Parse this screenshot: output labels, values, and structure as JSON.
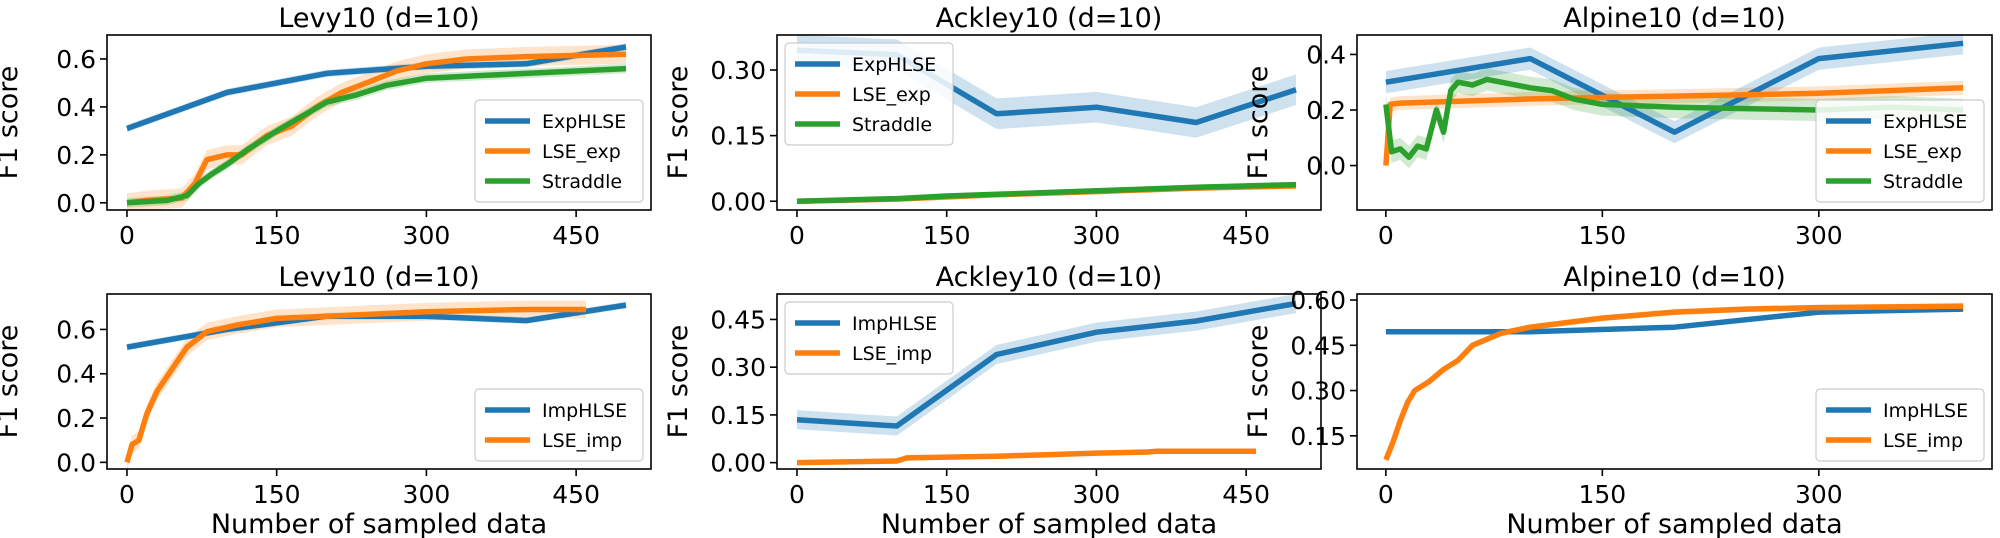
{
  "figure": {
    "background": "#ffffff"
  },
  "colors": {
    "blue": "#1f77b4",
    "orange": "#ff7f0e",
    "green": "#2ca02c"
  },
  "chart_data": [
    {
      "type": "line",
      "title": "Levy10 (d=10)",
      "xlabel": "",
      "ylabel": "F1 score",
      "xlim": [
        -20,
        525
      ],
      "ylim": [
        -0.03,
        0.7
      ],
      "xticks": [
        0,
        150,
        300,
        450
      ],
      "yticks": [
        0.0,
        0.2,
        0.4,
        0.6
      ],
      "ytick_labels": [
        "0.0",
        "0.2",
        "0.4",
        "0.6"
      ],
      "legend": "lower-right",
      "series": [
        {
          "name": "ExpHLSE",
          "color": "#1f77b4",
          "band": 0.015,
          "points": [
            [
              0,
              0.31
            ],
            [
              100,
              0.46
            ],
            [
              200,
              0.54
            ],
            [
              300,
              0.57
            ],
            [
              400,
              0.58
            ],
            [
              500,
              0.65
            ]
          ]
        },
        {
          "name": "LSE_exp",
          "color": "#ff7f0e",
          "band": 0.04,
          "points": [
            [
              0,
              0.0
            ],
            [
              20,
              0.01
            ],
            [
              55,
              0.02
            ],
            [
              68,
              0.08
            ],
            [
              80,
              0.18
            ],
            [
              100,
              0.2
            ],
            [
              115,
              0.2
            ],
            [
              140,
              0.28
            ],
            [
              165,
              0.32
            ],
            [
              190,
              0.4
            ],
            [
              215,
              0.46
            ],
            [
              240,
              0.5
            ],
            [
              270,
              0.55
            ],
            [
              300,
              0.58
            ],
            [
              340,
              0.6
            ],
            [
              400,
              0.61
            ],
            [
              500,
              0.62
            ]
          ]
        },
        {
          "name": "Straddle",
          "color": "#2ca02c",
          "band": 0.02,
          "points": [
            [
              0,
              0.0
            ],
            [
              40,
              0.01
            ],
            [
              60,
              0.03
            ],
            [
              72,
              0.08
            ],
            [
              85,
              0.12
            ],
            [
              100,
              0.16
            ],
            [
              120,
              0.22
            ],
            [
              150,
              0.3
            ],
            [
              175,
              0.36
            ],
            [
              200,
              0.42
            ],
            [
              230,
              0.45
            ],
            [
              260,
              0.49
            ],
            [
              300,
              0.52
            ],
            [
              350,
              0.53
            ],
            [
              400,
              0.54
            ],
            [
              450,
              0.55
            ],
            [
              500,
              0.56
            ]
          ]
        }
      ]
    },
    {
      "type": "line",
      "title": "Ackley10 (d=10)",
      "xlabel": "",
      "ylabel": "F1 score",
      "xlim": [
        -20,
        525
      ],
      "ylim": [
        -0.02,
        0.38
      ],
      "xticks": [
        0,
        150,
        300,
        450
      ],
      "yticks": [
        0.0,
        0.15,
        0.3
      ],
      "ytick_labels": [
        "0.00",
        "0.15",
        "0.30"
      ],
      "legend": "upper-left",
      "series": [
        {
          "name": "ExpHLSE",
          "color": "#1f77b4",
          "band": 0.035,
          "points": [
            [
              0,
              0.345
            ],
            [
              100,
              0.335
            ],
            [
              200,
              0.2
            ],
            [
              300,
              0.215
            ],
            [
              400,
              0.18
            ],
            [
              500,
              0.255
            ]
          ]
        },
        {
          "name": "LSE_exp",
          "color": "#ff7f0e",
          "band": 0.0,
          "points": [
            [
              0,
              0.0
            ],
            [
              100,
              0.005
            ],
            [
              200,
              0.015
            ],
            [
              300,
              0.022
            ],
            [
              400,
              0.03
            ],
            [
              500,
              0.035
            ]
          ]
        },
        {
          "name": "Straddle",
          "color": "#2ca02c",
          "band": 0.003,
          "points": [
            [
              0,
              0.0
            ],
            [
              100,
              0.006
            ],
            [
              150,
              0.012
            ],
            [
              200,
              0.016
            ],
            [
              300,
              0.024
            ],
            [
              400,
              0.032
            ],
            [
              500,
              0.038
            ]
          ]
        }
      ]
    },
    {
      "type": "line",
      "title": "Alpine10 (d=10)",
      "xlabel": "",
      "ylabel": "F1 score",
      "xlim": [
        -20,
        420
      ],
      "ylim": [
        -0.16,
        0.47
      ],
      "xticks": [
        0,
        150,
        300
      ],
      "yticks": [
        0.0,
        0.2,
        0.4
      ],
      "ytick_labels": [
        "0.0",
        "0.2",
        "0.4"
      ],
      "legend": "lower-right",
      "series": [
        {
          "name": "ExpHLSE",
          "color": "#1f77b4",
          "band": 0.04,
          "points": [
            [
              0,
              0.3
            ],
            [
              100,
              0.385
            ],
            [
              200,
              0.12
            ],
            [
              300,
              0.385
            ],
            [
              400,
              0.44
            ]
          ]
        },
        {
          "name": "LSE_exp",
          "color": "#ff7f0e",
          "band": 0.025,
          "points": [
            [
              0,
              0.0
            ],
            [
              3,
              0.22
            ],
            [
              10,
              0.225
            ],
            [
              100,
              0.24
            ],
            [
              200,
              0.25
            ],
            [
              300,
              0.26
            ],
            [
              400,
              0.28
            ]
          ]
        },
        {
          "name": "Straddle",
          "color": "#2ca02c",
          "band": 0.04,
          "points": [
            [
              0,
              0.22
            ],
            [
              4,
              0.05
            ],
            [
              10,
              0.06
            ],
            [
              16,
              0.03
            ],
            [
              22,
              0.07
            ],
            [
              28,
              0.06
            ],
            [
              35,
              0.2
            ],
            [
              40,
              0.12
            ],
            [
              45,
              0.27
            ],
            [
              50,
              0.3
            ],
            [
              60,
              0.29
            ],
            [
              70,
              0.31
            ],
            [
              80,
              0.3
            ],
            [
              90,
              0.29
            ],
            [
              100,
              0.28
            ],
            [
              115,
              0.27
            ],
            [
              130,
              0.24
            ],
            [
              150,
              0.22
            ],
            [
              200,
              0.21
            ],
            [
              250,
              0.205
            ],
            [
              300,
              0.2
            ],
            [
              350,
              0.21
            ],
            [
              400,
              0.2
            ]
          ]
        }
      ]
    },
    {
      "type": "line",
      "title": "Levy10 (d=10)",
      "xlabel": "Number of sampled data",
      "ylabel": "F1 score",
      "xlim": [
        -20,
        525
      ],
      "ylim": [
        -0.03,
        0.76
      ],
      "xticks": [
        0,
        150,
        300,
        450
      ],
      "yticks": [
        0.0,
        0.2,
        0.4,
        0.6
      ],
      "ytick_labels": [
        "0.0",
        "0.2",
        "0.4",
        "0.6"
      ],
      "legend": "lower-right",
      "series": [
        {
          "name": "ImpHLSE",
          "color": "#1f77b4",
          "band": 0.015,
          "points": [
            [
              0,
              0.52
            ],
            [
              100,
              0.6
            ],
            [
              200,
              0.66
            ],
            [
              300,
              0.66
            ],
            [
              400,
              0.64
            ],
            [
              500,
              0.71
            ]
          ]
        },
        {
          "name": "LSE_imp",
          "color": "#ff7f0e",
          "band": 0.04,
          "points": [
            [
              0,
              0.0
            ],
            [
              5,
              0.08
            ],
            [
              12,
              0.1
            ],
            [
              20,
              0.22
            ],
            [
              30,
              0.32
            ],
            [
              45,
              0.42
            ],
            [
              60,
              0.52
            ],
            [
              80,
              0.59
            ],
            [
              110,
              0.62
            ],
            [
              150,
              0.65
            ],
            [
              200,
              0.66
            ],
            [
              300,
              0.68
            ],
            [
              400,
              0.69
            ],
            [
              460,
              0.69
            ]
          ]
        }
      ]
    },
    {
      "type": "line",
      "title": "Ackley10 (d=10)",
      "xlabel": "Number of sampled data",
      "ylabel": "F1 score",
      "xlim": [
        -20,
        525
      ],
      "ylim": [
        -0.02,
        0.53
      ],
      "xticks": [
        0,
        150,
        300,
        450
      ],
      "yticks": [
        0.0,
        0.15,
        0.3,
        0.45
      ],
      "ytick_labels": [
        "0.00",
        "0.15",
        "0.30",
        "0.45"
      ],
      "legend": "upper-left",
      "series": [
        {
          "name": "ImpHLSE",
          "color": "#1f77b4",
          "band": 0.03,
          "points": [
            [
              0,
              0.135
            ],
            [
              100,
              0.115
            ],
            [
              200,
              0.34
            ],
            [
              300,
              0.41
            ],
            [
              400,
              0.445
            ],
            [
              500,
              0.5
            ]
          ]
        },
        {
          "name": "LSE_imp",
          "color": "#ff7f0e",
          "band": 0.0,
          "points": [
            [
              0,
              0.0
            ],
            [
              100,
              0.005
            ],
            [
              110,
              0.015
            ],
            [
              200,
              0.02
            ],
            [
              250,
              0.025
            ],
            [
              300,
              0.03
            ],
            [
              350,
              0.033
            ],
            [
              360,
              0.036
            ],
            [
              460,
              0.036
            ]
          ]
        }
      ]
    },
    {
      "type": "line",
      "title": "Alpine10 (d=10)",
      "xlabel": "Number of sampled data",
      "ylabel": "F1 score",
      "xlim": [
        -20,
        420
      ],
      "ylim": [
        0.04,
        0.62
      ],
      "xticks": [
        0,
        150,
        300
      ],
      "yticks": [
        0.15,
        0.3,
        0.45,
        0.6
      ],
      "ytick_labels": [
        "0.15",
        "0.30",
        "0.45",
        "0.60"
      ],
      "legend": "lower-right",
      "series": [
        {
          "name": "ImpHLSE",
          "color": "#1f77b4",
          "band": 0.008,
          "points": [
            [
              0,
              0.495
            ],
            [
              100,
              0.495
            ],
            [
              200,
              0.51
            ],
            [
              300,
              0.56
            ],
            [
              400,
              0.57
            ]
          ]
        },
        {
          "name": "LSE_imp",
          "color": "#ff7f0e",
          "band": 0.01,
          "points": [
            [
              0,
              0.07
            ],
            [
              5,
              0.13
            ],
            [
              10,
              0.2
            ],
            [
              15,
              0.26
            ],
            [
              20,
              0.3
            ],
            [
              30,
              0.33
            ],
            [
              40,
              0.37
            ],
            [
              50,
              0.4
            ],
            [
              60,
              0.45
            ],
            [
              80,
              0.49
            ],
            [
              100,
              0.51
            ],
            [
              150,
              0.54
            ],
            [
              200,
              0.56
            ],
            [
              250,
              0.57
            ],
            [
              300,
              0.575
            ],
            [
              400,
              0.58
            ]
          ]
        }
      ]
    }
  ]
}
